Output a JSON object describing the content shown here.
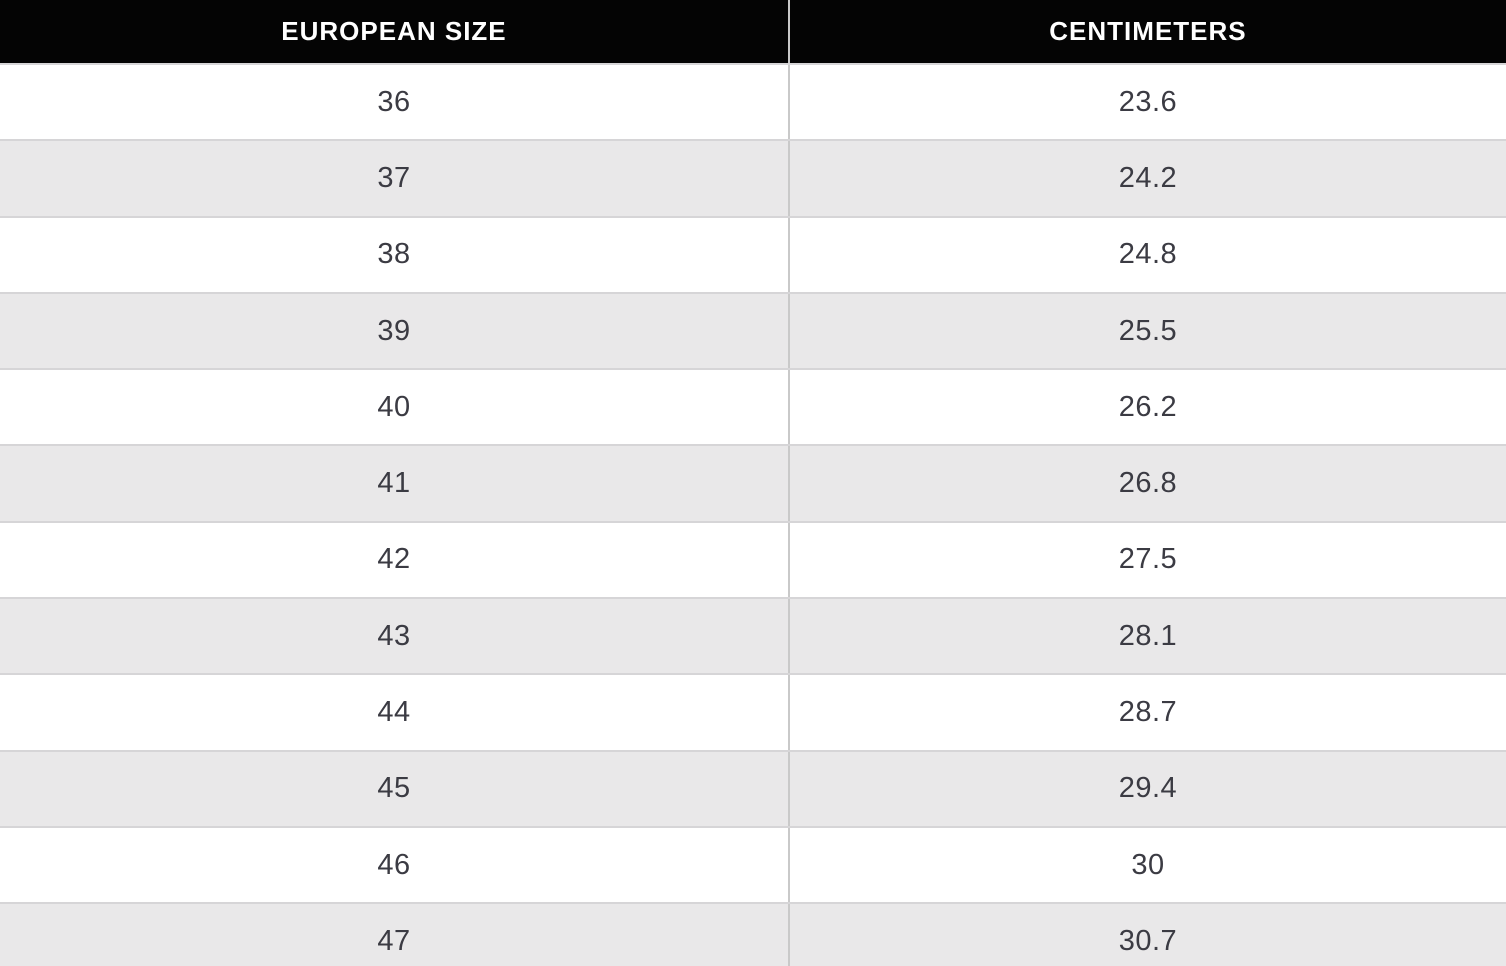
{
  "table": {
    "headers": [
      "EUROPEAN SIZE",
      "CENTIMETERS"
    ],
    "rows": [
      [
        "36",
        "23.6"
      ],
      [
        "37",
        "24.2"
      ],
      [
        "38",
        "24.8"
      ],
      [
        "39",
        "25.5"
      ],
      [
        "40",
        "26.2"
      ],
      [
        "41",
        "26.8"
      ],
      [
        "42",
        "27.5"
      ],
      [
        "43",
        "28.1"
      ],
      [
        "44",
        "28.7"
      ],
      [
        "45",
        "29.4"
      ],
      [
        "46",
        "30"
      ],
      [
        "47",
        "30.7"
      ]
    ]
  },
  "colors": {
    "header_bg": "#040404",
    "header_text": "#ffffff",
    "row_white": "#ffffff",
    "row_gray": "#e9e8e9",
    "row_border": "#d6d5d7",
    "column_divider": "#c9c9c9",
    "cell_text": "#3b3b43"
  },
  "chart_data": {
    "type": "table",
    "title": "European shoe size to centimeters conversion",
    "columns": [
      "EUROPEAN SIZE",
      "CENTIMETERS"
    ],
    "european_sizes": [
      36,
      37,
      38,
      39,
      40,
      41,
      42,
      43,
      44,
      45,
      46,
      47
    ],
    "centimeters": [
      23.6,
      24.2,
      24.8,
      25.5,
      26.2,
      26.8,
      27.5,
      28.1,
      28.7,
      29.4,
      30,
      30.7
    ],
    "layout": "header row black, body rows alternate white/gray, last row clipped at bottom edge"
  }
}
